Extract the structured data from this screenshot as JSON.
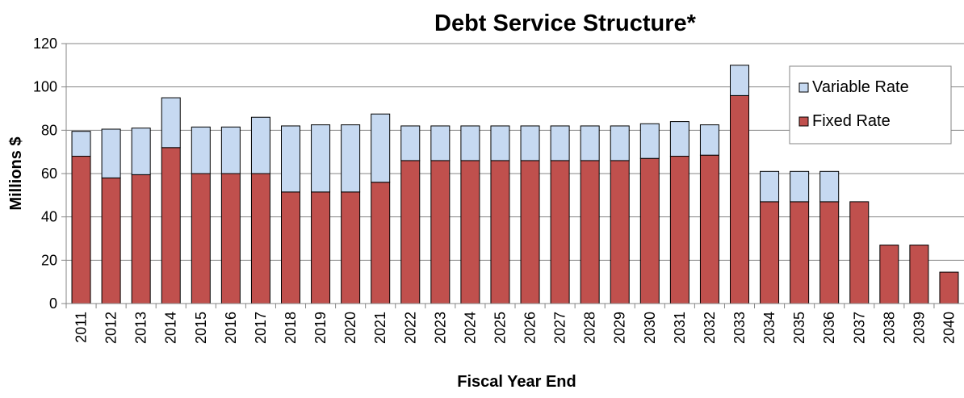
{
  "chart_data": {
    "type": "bar",
    "stacked": true,
    "title": "Debt Service Structure*",
    "xlabel": "Fiscal Year End",
    "ylabel": "Millions $",
    "ylim": [
      0,
      120
    ],
    "yticks": [
      0,
      20,
      40,
      60,
      80,
      100,
      120
    ],
    "grid": true,
    "legend_position": "top-right",
    "categories": [
      "2011",
      "2012",
      "2013",
      "2014",
      "2015",
      "2016",
      "2017",
      "2018",
      "2019",
      "2020",
      "2021",
      "2022",
      "2023",
      "2024",
      "2025",
      "2026",
      "2027",
      "2028",
      "2029",
      "2030",
      "2031",
      "2032",
      "2033",
      "2034",
      "2035",
      "2036",
      "2037",
      "2038",
      "2039",
      "2040"
    ],
    "series": [
      {
        "name": "Fixed Rate",
        "color": "#c0504d",
        "values": [
          68,
          58,
          59.5,
          72,
          60,
          60,
          60,
          51.5,
          51.5,
          51.5,
          56,
          66,
          66,
          66,
          66,
          66,
          66,
          66,
          66,
          67,
          68,
          68.5,
          96,
          47,
          47,
          47,
          47,
          27,
          27,
          14.5
        ]
      },
      {
        "name": "Variable Rate",
        "color": "#c6d9f1",
        "values": [
          11.5,
          22.5,
          21.5,
          23,
          21.5,
          21.5,
          26,
          30.5,
          31,
          31,
          31.5,
          16,
          16,
          16,
          16,
          16,
          16,
          16,
          16,
          16,
          16,
          14,
          14,
          14,
          14,
          14,
          0,
          0,
          0,
          0
        ]
      }
    ],
    "legend": [
      "Variable Rate",
      "Fixed Rate"
    ]
  }
}
